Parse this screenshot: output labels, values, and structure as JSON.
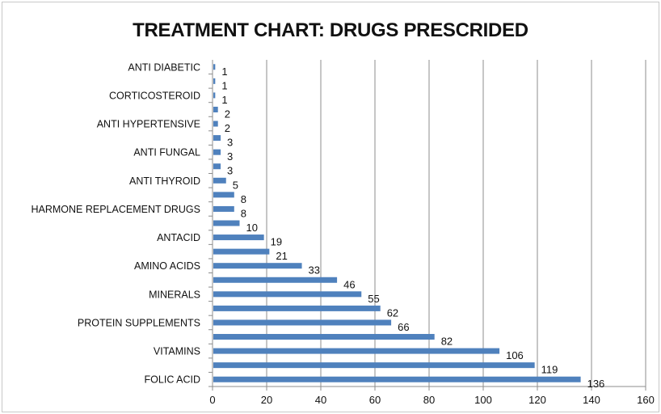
{
  "chart_data": {
    "type": "bar",
    "orientation": "horizontal",
    "title": "TREATMENT CHART: DRUGS PRESCRIDED",
    "xlabel": "",
    "ylabel": "",
    "xlim": [
      0,
      160
    ],
    "xticks": [
      0,
      20,
      40,
      60,
      80,
      100,
      120,
      140,
      160
    ],
    "grid": "vertical",
    "legend": "none",
    "bar_color": "#4f81bd",
    "categories": [
      "FOLIC ACID",
      "",
      "VITAMINS",
      "",
      "PROTEIN SUPPLEMENTS",
      "",
      "MINERALS",
      "",
      "AMINO ACIDS",
      "",
      "ANTACID ",
      "",
      "HARMONE REPLACEMENT DRUGS",
      "",
      "ANTI THYROID",
      "",
      "ANTI FUNGAL",
      "",
      "ANTI HYPERTENSIVE",
      "",
      "CORTICOSTEROID",
      "",
      "ANTI DIABETIC"
    ],
    "values": [
      136,
      119,
      106,
      82,
      66,
      62,
      55,
      46,
      33,
      21,
      19,
      10,
      8,
      8,
      5,
      3,
      3,
      3,
      2,
      2,
      1,
      1,
      1
    ],
    "data_labels": [
      "136",
      "119",
      "106",
      "82",
      "66",
      "62",
      "55",
      "46",
      "33",
      "21",
      "19",
      "10",
      "8",
      "8",
      "5",
      "3",
      "3",
      "3",
      "2",
      "2",
      "1",
      "1",
      "1"
    ]
  }
}
